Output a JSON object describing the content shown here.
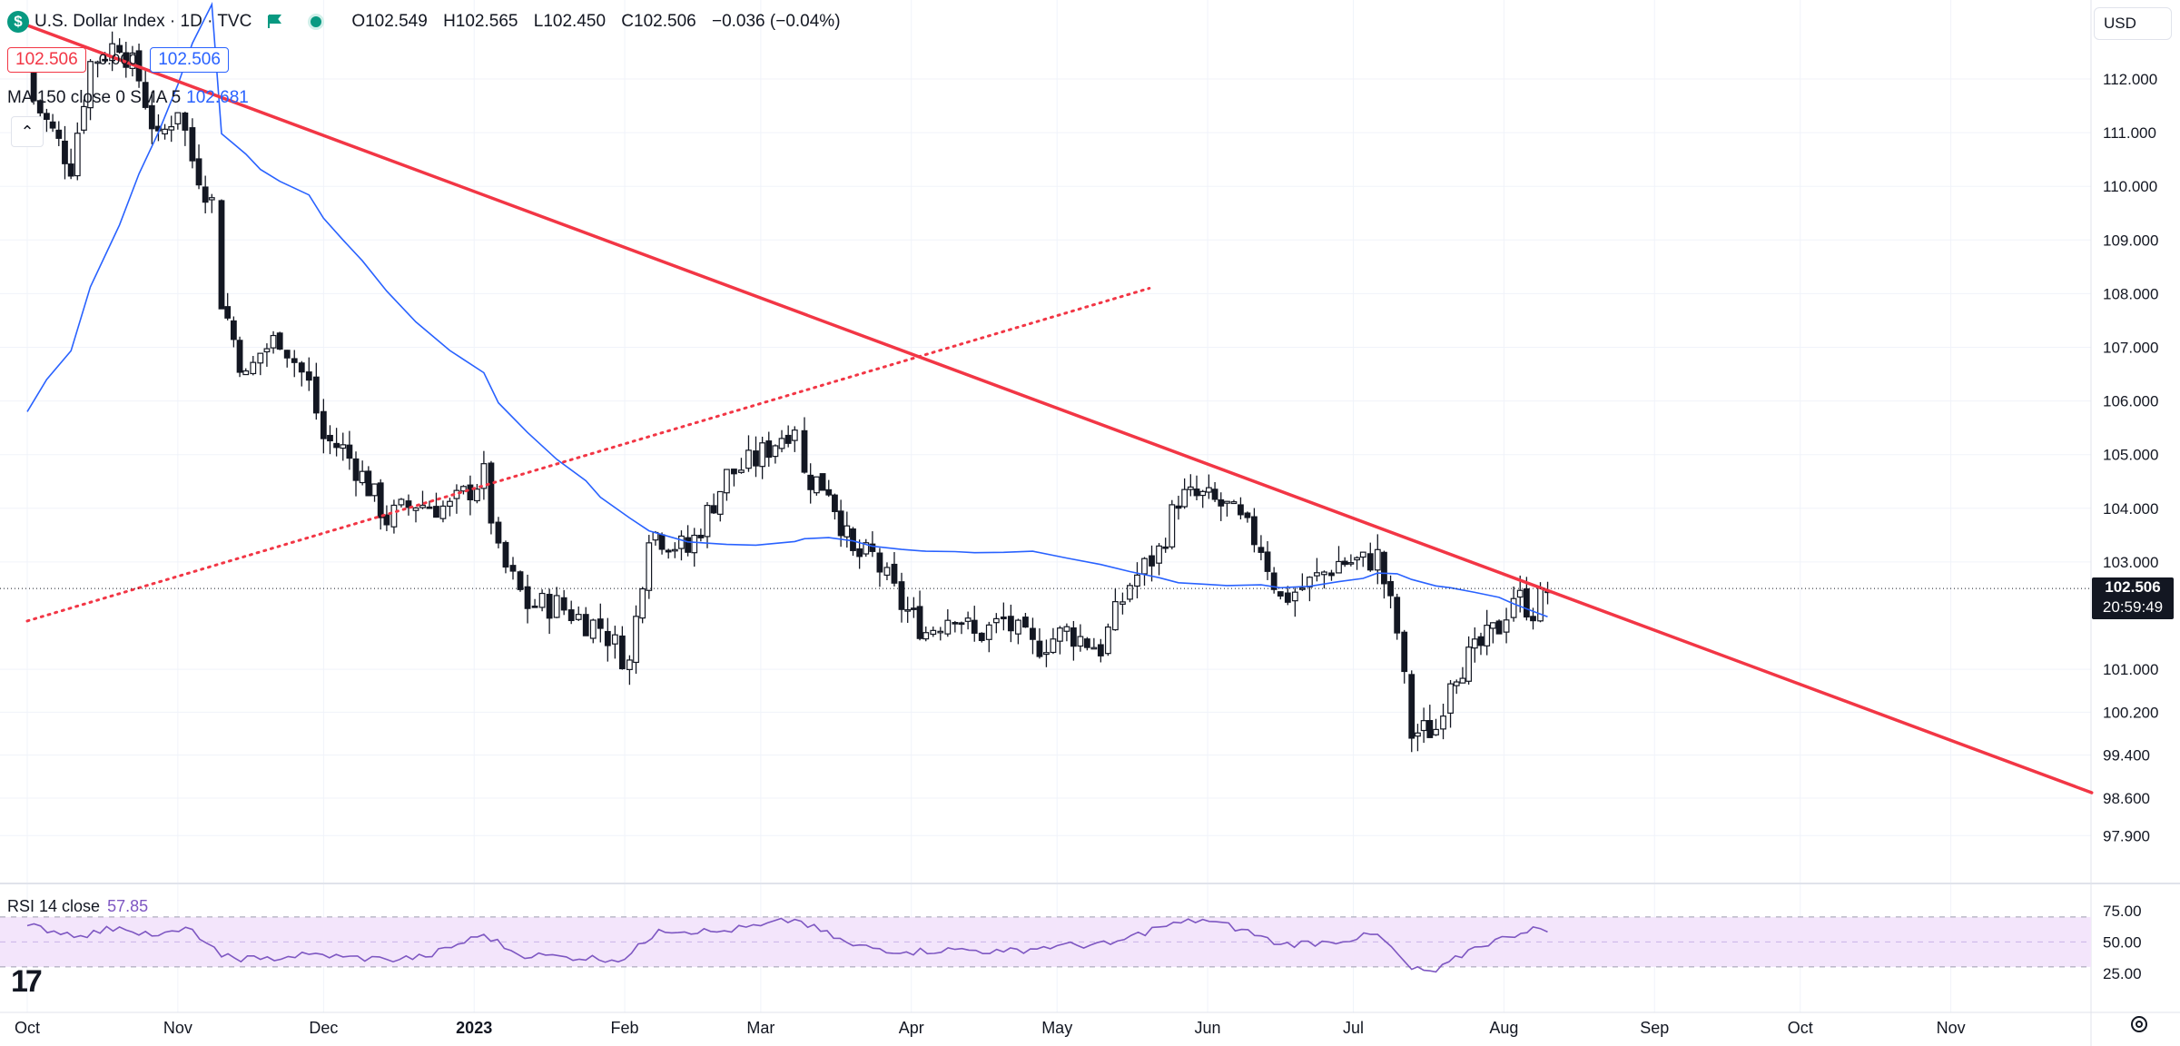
{
  "header": {
    "symbol_icon": "dollar-sign-icon",
    "title": "U.S. Dollar Index · 1D · TVC",
    "ohlc": {
      "open": "O102.549",
      "high": "H102.565",
      "low": "L102.450",
      "close": "C102.506",
      "change": "−0.036 (−0.04%)"
    },
    "bid": "102.506",
    "spread": "0.000",
    "ask": "102.506",
    "indicator_label": "MA 150 close 0 SMA 5",
    "indicator_value": "102.681",
    "currency": "USD"
  },
  "price_tag": {
    "price": "102.506",
    "countdown": "20:59:49"
  },
  "rsi": {
    "label": "RSI 14 close",
    "value": "57.85"
  },
  "colors": {
    "up": "#ffffff",
    "down": "#131722",
    "ma": "#2962ff",
    "trendline": "#f23645",
    "rsi_line": "#7e57c2",
    "rsi_fill": "#f3e5fb",
    "accent_green": "#089981"
  },
  "chart_data": [
    {
      "type": "candlestick",
      "title": "U.S. Dollar Index · 1D · TVC",
      "x_tick_labels": [
        "Oct",
        "Nov",
        "Dec",
        "2023",
        "Feb",
        "Mar",
        "Apr",
        "May",
        "Jun",
        "Jul",
        "Aug",
        "Sep",
        "Oct",
        "Nov"
      ],
      "y_tick_labels": [
        "112.000",
        "111.000",
        "110.000",
        "109.000",
        "108.000",
        "107.000",
        "106.000",
        "105.000",
        "104.000",
        "103.000",
        "101.000",
        "100.200",
        "99.400",
        "98.600",
        "97.900"
      ],
      "y_ticks": [
        112,
        111,
        110,
        109,
        108,
        107,
        106,
        105,
        104,
        103,
        101,
        100.2,
        99.4,
        98.6,
        97.9
      ],
      "last_price": 102.506,
      "close_series_approx": [
        [
          "2022-10-01",
          111.8
        ],
        [
          "2022-10-05",
          111.2
        ],
        [
          "2022-10-10",
          110.4
        ],
        [
          "2022-10-14",
          112.3
        ],
        [
          "2022-10-20",
          112.7
        ],
        [
          "2022-10-24",
          112.0
        ],
        [
          "2022-10-28",
          110.8
        ],
        [
          "2022-11-01",
          111.5
        ],
        [
          "2022-11-04",
          110.5
        ],
        [
          "2022-11-08",
          109.7
        ],
        [
          "2022-11-10",
          107.9
        ],
        [
          "2022-11-15",
          106.4
        ],
        [
          "2022-11-18",
          106.9
        ],
        [
          "2022-11-22",
          107.2
        ],
        [
          "2022-11-28",
          106.3
        ],
        [
          "2022-12-01",
          105.3
        ],
        [
          "2022-12-05",
          105.1
        ],
        [
          "2022-12-09",
          104.6
        ],
        [
          "2022-12-14",
          103.8
        ],
        [
          "2022-12-20",
          104.1
        ],
        [
          "2022-12-27",
          104.0
        ],
        [
          "2023-01-03",
          104.6
        ],
        [
          "2023-01-06",
          103.1
        ],
        [
          "2023-01-12",
          102.2
        ],
        [
          "2023-01-18",
          102.2
        ],
        [
          "2023-01-24",
          101.9
        ],
        [
          "2023-01-27",
          101.8
        ],
        [
          "2023-02-02",
          101.1
        ],
        [
          "2023-02-06",
          103.6
        ],
        [
          "2023-02-14",
          103.2
        ],
        [
          "2023-02-22",
          104.6
        ],
        [
          "2023-02-28",
          104.9
        ],
        [
          "2023-03-08",
          105.6
        ],
        [
          "2023-03-10",
          104.6
        ],
        [
          "2023-03-15",
          104.4
        ],
        [
          "2023-03-20",
          103.1
        ],
        [
          "2023-03-24",
          103.1
        ],
        [
          "2023-03-30",
          102.2
        ],
        [
          "2023-04-04",
          101.7
        ],
        [
          "2023-04-10",
          102.1
        ],
        [
          "2023-04-14",
          101.6
        ],
        [
          "2023-04-20",
          101.9
        ],
        [
          "2023-04-26",
          101.4
        ],
        [
          "2023-05-03",
          101.7
        ],
        [
          "2023-05-10",
          101.4
        ],
        [
          "2023-05-16",
          102.6
        ],
        [
          "2023-05-22",
          103.2
        ],
        [
          "2023-05-26",
          104.2
        ],
        [
          "2023-05-31",
          104.2
        ],
        [
          "2023-06-05",
          104.0
        ],
        [
          "2023-06-12",
          103.3
        ],
        [
          "2023-06-16",
          102.3
        ],
        [
          "2023-06-22",
          102.6
        ],
        [
          "2023-06-28",
          103.0
        ],
        [
          "2023-07-03",
          103.0
        ],
        [
          "2023-07-06",
          103.1
        ],
        [
          "2023-07-10",
          101.7
        ],
        [
          "2023-07-13",
          99.8
        ],
        [
          "2023-07-18",
          99.9
        ],
        [
          "2023-07-21",
          100.9
        ],
        [
          "2023-07-26",
          101.3
        ],
        [
          "2023-07-31",
          101.8
        ],
        [
          "2023-08-03",
          102.4
        ],
        [
          "2023-08-07",
          102.1
        ],
        [
          "2023-08-10",
          102.5
        ]
      ],
      "series": [
        {
          "name": "MA 150 close 0 SMA 5",
          "last_value": 102.681
        },
        {
          "name": "RSI 14 close",
          "last_value": 57.85
        }
      ],
      "annotations": [
        {
          "type": "trendline",
          "style": "solid",
          "from": [
            "2022-10-01",
            113.0
          ],
          "to": [
            "2023-11-30",
            98.7
          ]
        },
        {
          "type": "trendline",
          "style": "dotted",
          "from": [
            "2022-10-01",
            101.9
          ],
          "to": [
            "2023-05-20",
            108.1
          ]
        }
      ],
      "grid": true,
      "legend": "top-left"
    },
    {
      "type": "line",
      "title": "RSI 14 close",
      "y_tick_labels": [
        "75.00",
        "50.00",
        "25.00"
      ],
      "y_ticks": [
        75,
        50,
        25
      ],
      "band": [
        30,
        70
      ],
      "rsi_approx": [
        [
          "2022-10-01",
          63
        ],
        [
          "2022-10-12",
          55
        ],
        [
          "2022-10-20",
          62
        ],
        [
          "2022-10-28",
          55
        ],
        [
          "2022-11-04",
          60
        ],
        [
          "2022-11-10",
          38
        ],
        [
          "2022-11-18",
          36
        ],
        [
          "2022-11-28",
          40
        ],
        [
          "2022-12-05",
          38
        ],
        [
          "2022-12-14",
          36
        ],
        [
          "2022-12-22",
          38
        ],
        [
          "2023-01-03",
          56
        ],
        [
          "2023-01-10",
          40
        ],
        [
          "2023-01-20",
          38
        ],
        [
          "2023-02-01",
          36
        ],
        [
          "2023-02-08",
          60
        ],
        [
          "2023-02-20",
          58
        ],
        [
          "2023-03-01",
          63
        ],
        [
          "2023-03-08",
          68
        ],
        [
          "2023-03-20",
          47
        ],
        [
          "2023-03-31",
          42
        ],
        [
          "2023-04-10",
          44
        ],
        [
          "2023-04-20",
          42
        ],
        [
          "2023-05-01",
          47
        ],
        [
          "2023-05-12",
          48
        ],
        [
          "2023-05-22",
          62
        ],
        [
          "2023-05-31",
          68
        ],
        [
          "2023-06-08",
          60
        ],
        [
          "2023-06-16",
          48
        ],
        [
          "2023-06-26",
          50
        ],
        [
          "2023-07-06",
          56
        ],
        [
          "2023-07-13",
          28
        ],
        [
          "2023-07-18",
          26
        ],
        [
          "2023-07-26",
          46
        ],
        [
          "2023-08-02",
          54
        ],
        [
          "2023-08-07",
          62
        ],
        [
          "2023-08-10",
          58
        ]
      ]
    }
  ]
}
